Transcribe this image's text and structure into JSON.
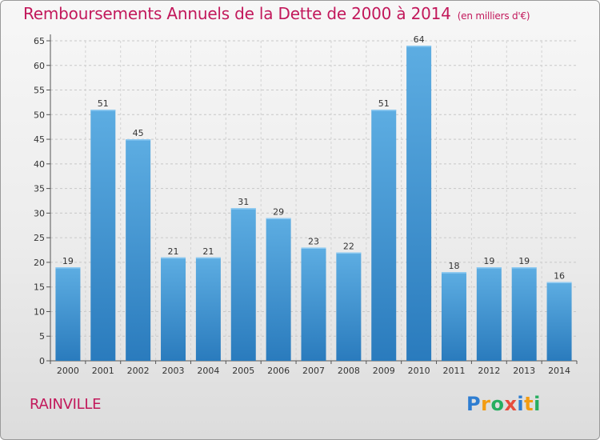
{
  "title": "Remboursements Annuels de la Dette de 2000 à 2014",
  "subtitle": "(en milliers d'€)",
  "commune": "RAINVILLE",
  "logo": {
    "text": "Proxiti",
    "letters": [
      {
        "char": "P",
        "color": "#2e7dd1"
      },
      {
        "char": "r",
        "color": "#f39c12"
      },
      {
        "char": "o",
        "color": "#27ae60"
      },
      {
        "char": "x",
        "color": "#e74c3c"
      },
      {
        "char": "i",
        "color": "#2e7dd1"
      },
      {
        "char": "t",
        "color": "#f39c12"
      },
      {
        "char": "i",
        "color": "#27ae60"
      }
    ]
  },
  "chart_data": {
    "type": "bar",
    "title": "Remboursements Annuels de la Dette de 2000 à 2014",
    "subtitle": "(en milliers d'€)",
    "xlabel": "",
    "ylabel": "",
    "categories": [
      "2000",
      "2001",
      "2002",
      "2003",
      "2004",
      "2005",
      "2006",
      "2007",
      "2008",
      "2009",
      "2010",
      "2011",
      "2012",
      "2013",
      "2014"
    ],
    "values": [
      19,
      51,
      45,
      21,
      21,
      31,
      29,
      23,
      22,
      51,
      64,
      18,
      19,
      19,
      16
    ],
    "ylim": [
      0,
      65
    ],
    "yticks": [
      0,
      5,
      10,
      15,
      20,
      25,
      30,
      35,
      40,
      45,
      50,
      55,
      60,
      65
    ],
    "grid": true,
    "legend": "none",
    "bar_color_top": "#5dade2",
    "bar_color_bottom": "#2a7bbd"
  }
}
